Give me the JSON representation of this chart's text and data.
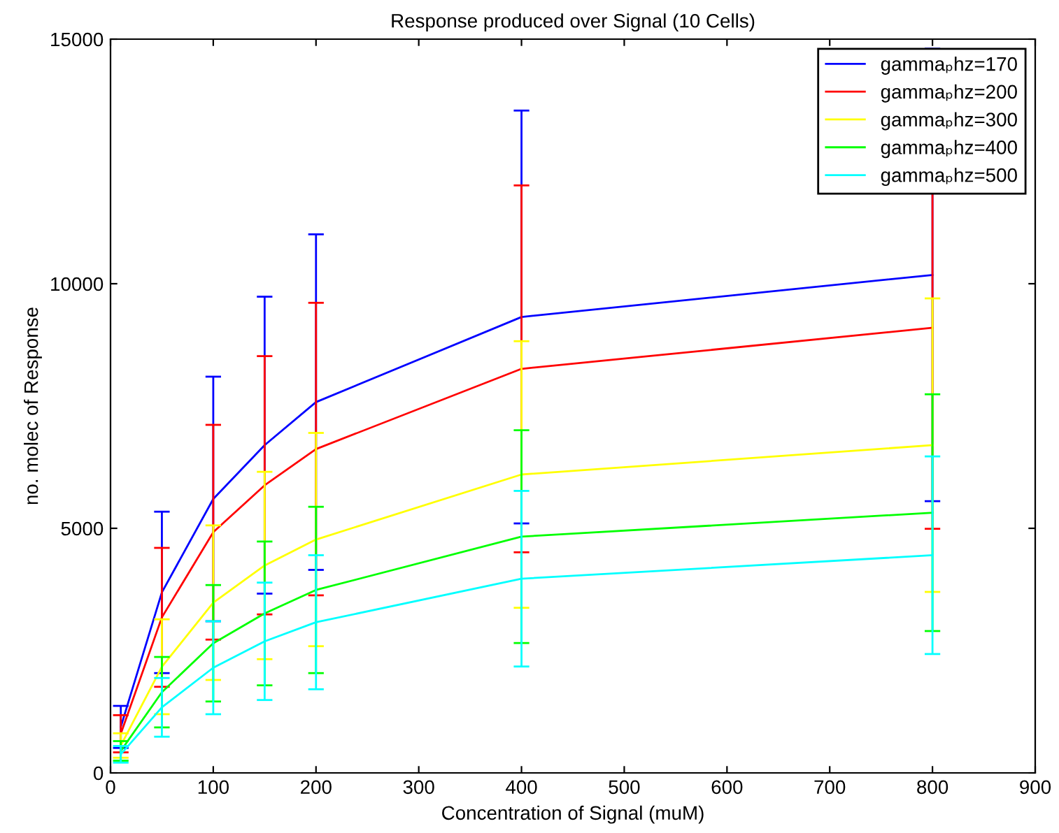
{
  "chart_data": {
    "type": "line",
    "title": "Response produced over Signal (10 Cells)",
    "xlabel": "Concentration of Signal (muM)",
    "ylabel": "no. molec of Response",
    "x": [
      10,
      50,
      100,
      150,
      200,
      400,
      800
    ],
    "series": [
      {
        "name": "gammaₚhz=170",
        "color": "#0000ff",
        "values": [
          940,
          3690,
          5600,
          6700,
          7580,
          9320,
          10180
        ],
        "errors": [
          430,
          1650,
          2500,
          3035,
          3430,
          4220,
          4625
        ]
      },
      {
        "name": "gammaₚhz=200",
        "color": "#ff0000",
        "values": [
          800,
          3180,
          4920,
          5880,
          6620,
          8260,
          9100
        ],
        "errors": [
          380,
          1420,
          2195,
          2640,
          2990,
          3750,
          4110
        ]
      },
      {
        "name": "gammaₚhz=300",
        "color": "#ffff00",
        "values": [
          560,
          2170,
          3480,
          4240,
          4770,
          6100,
          6700
        ],
        "errors": [
          250,
          970,
          1580,
          1915,
          2180,
          2725,
          3000
        ]
      },
      {
        "name": "gammaₚhz=400",
        "color": "#00ff00",
        "values": [
          450,
          1650,
          2650,
          3260,
          3740,
          4830,
          5320
        ],
        "errors": [
          200,
          720,
          1190,
          1470,
          1700,
          2175,
          2420
        ]
      },
      {
        "name": "gammaₚhz=500",
        "color": "#00ffff",
        "values": [
          380,
          1340,
          2150,
          2690,
          3080,
          3970,
          4450
        ],
        "errors": [
          170,
          600,
          950,
          1200,
          1370,
          1795,
          2020
        ]
      }
    ],
    "xlim": [
      0,
      900
    ],
    "xticks": [
      0,
      100,
      200,
      300,
      400,
      500,
      600,
      700,
      800,
      900
    ],
    "ylim": [
      0,
      15000
    ],
    "yticks": [
      0,
      5000,
      10000,
      15000
    ],
    "grid": false,
    "legend": "top right",
    "marker": "none",
    "line_style": "solid"
  }
}
